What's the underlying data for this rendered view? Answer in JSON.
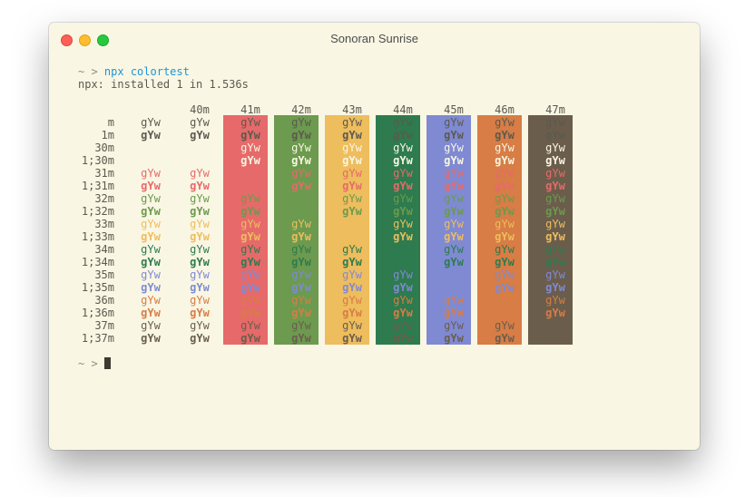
{
  "window": {
    "title": "Sonoran Sunrise"
  },
  "terminal": {
    "prompt1": "~ >",
    "command": "npx colortest",
    "output": "npx: installed 1 in 1.536s",
    "prompt2": "~ >"
  },
  "colortest": {
    "sample": "gYw",
    "bg_headers": [
      "40m",
      "41m",
      "42m",
      "43m",
      "44m",
      "45m",
      "46m",
      "47m"
    ],
    "bg_colors": [
      "transparent",
      "#e66a6a",
      "#6c9a4e",
      "#eebd5d",
      "#2d7b4e",
      "#7f8ad3",
      "#d77d45",
      "#6b5d4c"
    ],
    "row_labels": [
      "m",
      "1m",
      "30m",
      "1;30m",
      "31m",
      "1;31m",
      "32m",
      "1;32m",
      "33m",
      "1;33m",
      "34m",
      "1;34m",
      "35m",
      "1;35m",
      "36m",
      "1;36m",
      "37m",
      "1;37m"
    ],
    "fg_colors": {
      "default": "#5b5a4f",
      "30": "#f9f6e3",
      "31": "#e66a6a",
      "32": "#6c9a4e",
      "33": "#eebd5d",
      "34": "#2d7b4e",
      "35": "#7f8ad3",
      "36": "#d77d45",
      "37": "#6b5d4c"
    }
  }
}
